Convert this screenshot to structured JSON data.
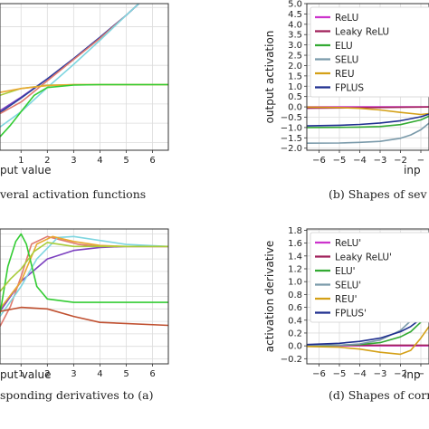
{
  "chart_data": [
    {
      "id": "a",
      "type": "line",
      "panel_caption": "veral activation functions",
      "xlabel": "put value",
      "ylabel": "",
      "xlim": [
        0.2,
        6.6
      ],
      "ylim": [
        -2.4,
        5.2
      ],
      "xticks": [
        1,
        2,
        3,
        4,
        5,
        6
      ],
      "xtick_labels": [
        "1",
        "2",
        "3",
        "4",
        "5",
        "6"
      ],
      "grid": true,
      "legend": null,
      "series": [
        {
          "color": "#7b3fbf",
          "x": [
            0.2,
            1,
            2,
            3,
            4,
            5,
            6.6
          ],
          "y": [
            -0.35,
            0.35,
            1.3,
            2.35,
            3.45,
            4.6,
            6.6
          ]
        },
        {
          "color": "#2a3f9e",
          "x": [
            0.2,
            1,
            2,
            3,
            4,
            5,
            6.6
          ],
          "y": [
            -0.45,
            0.3,
            1.3,
            2.35,
            3.45,
            4.6,
            6.6
          ]
        },
        {
          "color": "#e07a6e",
          "x": [
            0.2,
            1,
            2,
            3,
            4,
            5,
            6.6
          ],
          "y": [
            -0.5,
            0.1,
            1.2,
            2.3,
            3.4,
            4.6,
            6.6
          ]
        },
        {
          "color": "#7fd6e0",
          "x": [
            0.2,
            1,
            2,
            3,
            4,
            5,
            6.6
          ],
          "y": [
            -1.2,
            -0.4,
            0.85,
            2.05,
            3.3,
            4.6,
            6.6
          ]
        },
        {
          "color": "#a8cc3a",
          "x": [
            0.2,
            1,
            2,
            3,
            4,
            5,
            6.6
          ],
          "y": [
            0.45,
            0.8,
            0.97,
            1.0,
            1.0,
            1.0,
            1.0
          ]
        },
        {
          "color": "#e8a830",
          "x": [
            0.2,
            1,
            2,
            3,
            4,
            5,
            6.6
          ],
          "y": [
            0.6,
            0.8,
            0.95,
            1.0,
            1.0,
            1.0,
            1.0
          ]
        },
        {
          "color": "#33cc33",
          "x": [
            0.2,
            0.6,
            1,
            1.5,
            2,
            3,
            4,
            6.6
          ],
          "y": [
            -1.7,
            -1.1,
            -0.4,
            0.45,
            0.85,
            0.98,
            1.0,
            1.0
          ]
        }
      ]
    },
    {
      "id": "b",
      "type": "line",
      "panel_caption": "(b) Shapes of sev",
      "xlabel": "inp",
      "ylabel": "output activation",
      "xlim": [
        -6.6,
        -0.6
      ],
      "ylim": [
        -2.1,
        5.0
      ],
      "xticks": [
        -6,
        -5,
        -4,
        -3,
        -2,
        -1
      ],
      "xtick_labels": [
        "−6",
        "−5",
        "−4",
        "−3",
        "−2",
        "−"
      ],
      "yticks": [
        -2.0,
        -1.5,
        -1.0,
        -0.5,
        0.0,
        0.5,
        1.0,
        1.5,
        2.0,
        2.5,
        3.0,
        3.5,
        4.0,
        4.5,
        5.0
      ],
      "ytick_labels": [
        "−2.0",
        "−1.5",
        "−1.0",
        "−0.5",
        "0.0",
        "0.5",
        "1.0",
        "1.5",
        "2.0",
        "2.5",
        "3.0",
        "3.5",
        "4.0",
        "4.5",
        "5.0"
      ],
      "grid": true,
      "legend": "upper-left",
      "series": [
        {
          "name": "ReLU",
          "color": "#cc33cc",
          "x": [
            -6.6,
            -0.6
          ],
          "y": [
            0.0,
            0.0
          ]
        },
        {
          "name": "Leaky ReLU",
          "color": "#a0205a",
          "x": [
            -6.6,
            -0.6
          ],
          "y": [
            -0.066,
            -0.006
          ]
        },
        {
          "name": "ELU",
          "color": "#33aa33",
          "x": [
            -6.6,
            -5,
            -4,
            -3,
            -2,
            -1,
            -0.6
          ],
          "y": [
            -1.0,
            -0.99,
            -0.98,
            -0.95,
            -0.86,
            -0.63,
            -0.45
          ]
        },
        {
          "name": "SELU",
          "color": "#7a9aaa",
          "x": [
            -6.6,
            -5,
            -4,
            -3,
            -2,
            -1.5,
            -1,
            -0.6
          ],
          "y": [
            -1.76,
            -1.75,
            -1.72,
            -1.67,
            -1.52,
            -1.36,
            -1.11,
            -0.79
          ]
        },
        {
          "name": "REU",
          "color": "#d4a017",
          "x": [
            -6.6,
            -5,
            -4,
            -3,
            -2,
            -1,
            -0.6
          ],
          "y": [
            -0.01,
            -0.03,
            -0.07,
            -0.15,
            -0.27,
            -0.37,
            -0.33
          ]
        },
        {
          "name": "FPLUS",
          "color": "#1f2f8f",
          "x": [
            -6.6,
            -5,
            -4,
            -3,
            -2,
            -1,
            -0.6
          ],
          "y": [
            -0.92,
            -0.89,
            -0.85,
            -0.78,
            -0.67,
            -0.48,
            -0.35
          ]
        }
      ]
    },
    {
      "id": "c",
      "type": "line",
      "panel_caption": "sponding derivatives to (a)",
      "xlabel": "put value",
      "ylabel": "",
      "xlim": [
        0.2,
        6.6
      ],
      "ylim": [
        -1.35,
        1.35
      ],
      "xticks": [
        1,
        2,
        3,
        4,
        5,
        6
      ],
      "xtick_labels": [
        "1",
        "2",
        "3",
        "4",
        "5",
        "6"
      ],
      "grid": true,
      "legend": null,
      "series": [
        {
          "color": "#7b3fbf",
          "x": [
            0.2,
            1,
            2,
            3,
            4,
            5,
            6.6
          ],
          "y": [
            -0.3,
            0.3,
            0.75,
            0.92,
            0.98,
            1.0,
            1.0
          ]
        },
        {
          "color": "#e07a6e",
          "x": [
            0.2,
            0.6,
            1,
            1.4,
            2,
            2.6,
            3.2,
            4,
            5,
            6.6
          ],
          "y": [
            -0.6,
            -0.2,
            0.4,
            1.05,
            1.2,
            1.12,
            1.04,
            1.0,
            1.0,
            1.0
          ]
        },
        {
          "color": "#7fd6e0",
          "x": [
            0.2,
            1,
            1.6,
            2.4,
            3,
            4,
            5,
            6.6
          ],
          "y": [
            -0.4,
            0.2,
            0.75,
            1.18,
            1.2,
            1.12,
            1.04,
            1.0
          ]
        },
        {
          "color": "#e8a830",
          "x": [
            0.2,
            1,
            1.6,
            2.2,
            3,
            4,
            5,
            6.6
          ],
          "y": [
            -0.25,
            0.3,
            1.05,
            1.2,
            1.1,
            1.02,
            1.0,
            1.0
          ]
        },
        {
          "color": "#33cc33",
          "x": [
            0.2,
            0.5,
            0.8,
            1,
            1.2,
            1.6,
            2,
            3,
            6.6
          ],
          "y": [
            -0.35,
            0.6,
            1.1,
            1.25,
            1.05,
            0.2,
            -0.05,
            -0.12,
            -0.12
          ]
        },
        {
          "color": "#a8cc3a",
          "x": [
            0.2,
            0.6,
            1,
            1.5,
            2,
            3,
            4,
            6.6
          ],
          "y": [
            0.1,
            0.35,
            0.55,
            0.9,
            1.08,
            1.0,
            1.0,
            1.0
          ]
        },
        {
          "color": "#c05030",
          "x": [
            0.2,
            1,
            2,
            3,
            4,
            6.6
          ],
          "y": [
            -0.3,
            -0.22,
            -0.25,
            -0.4,
            -0.52,
            -0.58
          ]
        }
      ]
    },
    {
      "id": "d",
      "type": "line",
      "panel_caption": "(d) Shapes of corres",
      "xlabel": "inp",
      "ylabel": "activation derivative",
      "xlim": [
        -6.6,
        -0.6
      ],
      "ylim": [
        -0.28,
        1.82
      ],
      "xticks": [
        -6,
        -5,
        -4,
        -3,
        -2,
        -1
      ],
      "xtick_labels": [
        "−6",
        "−5",
        "−4",
        "−3",
        "−2",
        "−"
      ],
      "yticks": [
        -0.2,
        0.0,
        0.2,
        0.4,
        0.6,
        0.8,
        1.0,
        1.2,
        1.4,
        1.6,
        1.8
      ],
      "ytick_labels": [
        "−0.2",
        "0.0",
        "0.2",
        "0.4",
        "0.6",
        "0.8",
        "1.0",
        "1.2",
        "1.4",
        "1.6",
        "1.8"
      ],
      "grid": true,
      "legend": "upper-left",
      "series": [
        {
          "name": "ReLU'",
          "color": "#cc33cc",
          "x": [
            -6.6,
            -0.6
          ],
          "y": [
            0.0,
            0.0
          ]
        },
        {
          "name": "Leaky ReLU'",
          "color": "#a0205a",
          "x": [
            -6.6,
            -0.6
          ],
          "y": [
            0.01,
            0.01
          ]
        },
        {
          "name": "ELU'",
          "color": "#33aa33",
          "x": [
            -6.6,
            -5,
            -4,
            -3,
            -2,
            -1.5,
            -1,
            -0.6
          ],
          "y": [
            0.0,
            0.01,
            0.02,
            0.05,
            0.14,
            0.22,
            0.37,
            0.55
          ]
        },
        {
          "name": "SELU'",
          "color": "#7a9aaa",
          "x": [
            -6.6,
            -5,
            -4,
            -3,
            -2,
            -1.5,
            -1,
            -0.6
          ],
          "y": [
            0.01,
            0.01,
            0.03,
            0.09,
            0.24,
            0.39,
            0.65,
            0.97
          ]
        },
        {
          "name": "REU'",
          "color": "#d4a017",
          "x": [
            -6.6,
            -5,
            -4,
            -3,
            -2,
            -1.5,
            -1,
            -0.6
          ],
          "y": [
            -0.01,
            -0.02,
            -0.05,
            -0.1,
            -0.13,
            -0.07,
            0.12,
            0.3
          ]
        },
        {
          "name": "FPLUS'",
          "color": "#1f2f8f",
          "x": [
            -6.6,
            -5,
            -4,
            -3,
            -2,
            -1.5,
            -1,
            -0.6
          ],
          "y": [
            0.02,
            0.04,
            0.07,
            0.12,
            0.22,
            0.3,
            0.42,
            0.55
          ]
        }
      ]
    }
  ]
}
